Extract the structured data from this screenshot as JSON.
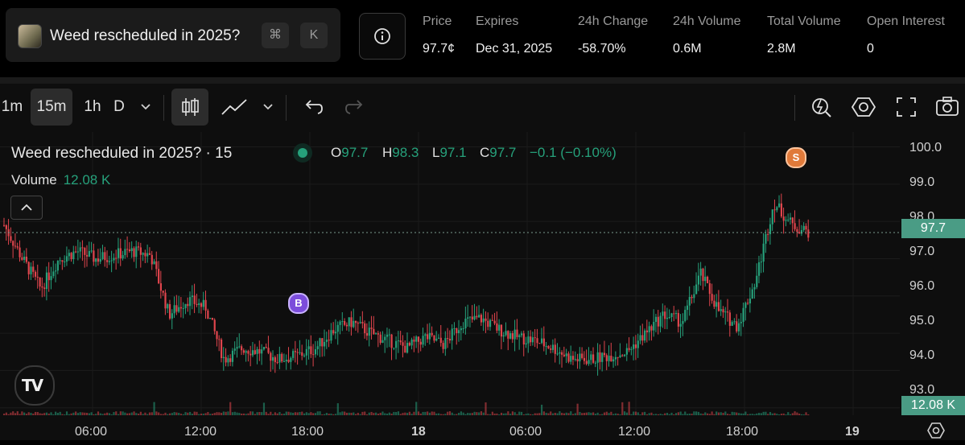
{
  "market": {
    "title": "Weed rescheduled in 2025?",
    "shortcut_cmd": "⌘",
    "shortcut_key": "K",
    "thumb_icon": "market-thumbnail",
    "info_icon": "info-circle-icon"
  },
  "stats": [
    {
      "label": "Price",
      "value": "97.7¢"
    },
    {
      "label": "Expires",
      "value": "Dec 31, 2025"
    },
    {
      "label": "24h Change",
      "value": "-58.70%"
    },
    {
      "label": "24h Volume",
      "value": "0.6M"
    },
    {
      "label": "Total Volume",
      "value": "2.8M"
    },
    {
      "label": "Open Interest",
      "value": "0"
    }
  ],
  "toolbar": {
    "intervals": [
      "1m",
      "15m",
      "1h",
      "D"
    ],
    "active_interval": "15m",
    "chevron_icon": "chevron-down-icon",
    "candles_icon": "candlestick-icon",
    "line_icon": "line-chart-icon",
    "undo_icon": "undo-icon",
    "redo_icon": "redo-icon",
    "right_icons": [
      "lightning-search-icon",
      "hexagon-settings-icon",
      "fullscreen-icon",
      "camera-icon"
    ]
  },
  "legend": {
    "title": "Weed rescheduled in 2025? · 15",
    "o_label": "O",
    "o_value": "97.7",
    "h_label": "H",
    "h_value": "98.3",
    "l_label": "L",
    "l_value": "97.1",
    "c_label": "C",
    "c_value": "97.7",
    "change": "−0.1 (−0.10%)",
    "volume_label": "Volume",
    "volume_value": "12.08 K"
  },
  "markers": [
    {
      "label": "B",
      "color": "#7c4ddb"
    },
    {
      "label": "S",
      "color": "#e07a3a"
    }
  ],
  "price_tag": "97.7",
  "volume_tag": "12.08 K",
  "colors": {
    "up": "#26a17b",
    "down": "#e0454d",
    "background": "#0e0e0e"
  },
  "chart_data": {
    "type": "candlestick",
    "y_axis_ticks": [
      "100.0",
      "99.0",
      "98.0",
      "97.0",
      "96.0",
      "95.0",
      "94.0",
      "93.0"
    ],
    "x_axis_ticks": [
      "06:00",
      "12:00",
      "18:00",
      "18",
      "06:00",
      "12:00",
      "18:00",
      "19"
    ],
    "ylim": [
      92.8,
      100.4
    ],
    "last_price": 97.7,
    "approx_close_path": [
      97.9,
      97.0,
      96.2,
      97.0,
      97.2,
      97.0,
      97.1,
      97.2,
      97.1,
      95.5,
      95.9,
      95.7,
      94.3,
      94.6,
      94.5,
      94.3,
      94.4,
      94.6,
      95.1,
      95.3,
      95.0,
      94.8,
      94.6,
      94.9,
      94.7,
      95.3,
      95.4,
      95.1,
      94.9,
      94.8,
      94.6,
      94.3,
      94.3,
      94.4,
      94.5,
      95.0,
      95.5,
      95.3,
      96.6,
      95.6,
      95.2,
      96.4,
      98.5,
      97.9,
      97.7
    ]
  }
}
